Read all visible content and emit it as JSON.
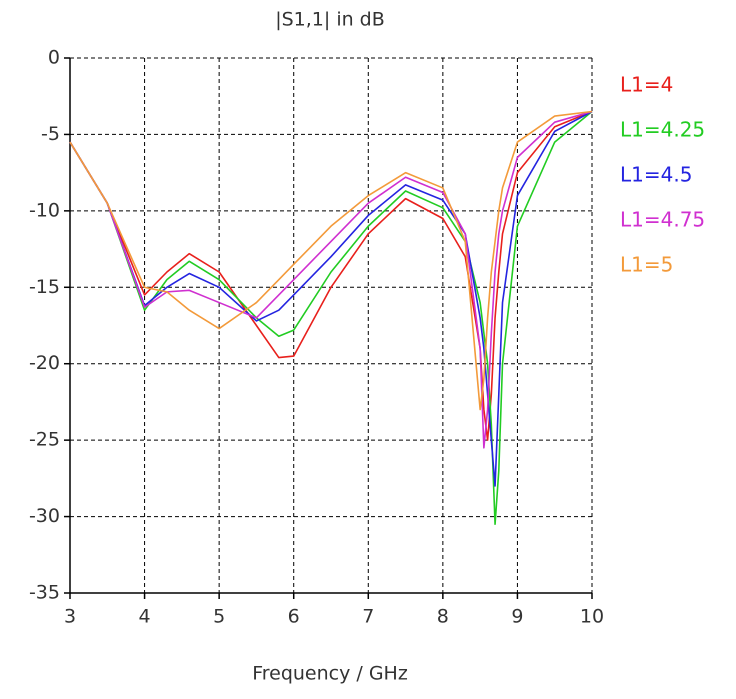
{
  "chart_data": {
    "type": "line",
    "title": "|S1,1| in dB",
    "x_label": "Frequency / GHz",
    "x": [
      3,
      3.5,
      4,
      4.3,
      4.6,
      5,
      5.5,
      5.8,
      6,
      6.5,
      7,
      7.5,
      8,
      8.3,
      8.5,
      8.55,
      8.6,
      8.65,
      8.7,
      8.75,
      8.8,
      9,
      9.5,
      10
    ],
    "series": [
      {
        "name": "L1=4",
        "color": "#e8201c",
        "values": [
          -5.5,
          -9.5,
          -15.5,
          -14,
          -12.8,
          -14,
          -17.5,
          -19.6,
          -19.5,
          -15,
          -11.5,
          -9.2,
          -10.5,
          -13,
          -19,
          -23,
          -25,
          -22,
          -17,
          -14,
          -11.5,
          -7.5,
          -4.5,
          -3.5
        ]
      },
      {
        "name": "L1=4.25",
        "color": "#22cc22",
        "values": [
          -5.5,
          -9.5,
          -16.5,
          -14.5,
          -13.3,
          -14.5,
          -17,
          -18.2,
          -17.8,
          -14,
          -11,
          -8.7,
          -9.8,
          -12,
          -16,
          -18,
          -20,
          -24,
          -30.5,
          -27,
          -20,
          -11,
          -5.5,
          -3.5
        ]
      },
      {
        "name": "L1=4.5",
        "color": "#2424e0",
        "values": [
          -5.5,
          -9.5,
          -16.2,
          -15,
          -14.1,
          -15,
          -17.2,
          -16.5,
          -15.5,
          -13,
          -10.3,
          -8.3,
          -9.3,
          -11.5,
          -17,
          -19,
          -22,
          -25,
          -28,
          -22,
          -16,
          -9,
          -4.8,
          -3.5
        ]
      },
      {
        "name": "L1=4.75",
        "color": "#d030d0",
        "values": [
          -5.5,
          -9.5,
          -16.3,
          -15.3,
          -15.2,
          -16,
          -17,
          -15.5,
          -14.5,
          -12,
          -9.5,
          -7.8,
          -8.8,
          -11.5,
          -19,
          -25.5,
          -23,
          -18,
          -14,
          -11.5,
          -10,
          -6.5,
          -4.2,
          -3.5
        ]
      },
      {
        "name": "L1=5",
        "color": "#f39a3a",
        "values": [
          -5.5,
          -9.5,
          -15,
          -15.3,
          -16.5,
          -17.7,
          -16,
          -14.5,
          -13.5,
          -11,
          -9,
          -7.5,
          -8.5,
          -12,
          -23,
          -21,
          -17,
          -14,
          -12,
          -10,
          -8.5,
          -5.5,
          -3.8,
          -3.5
        ]
      }
    ],
    "xlim": [
      3,
      10
    ],
    "xticks": [
      3,
      4,
      5,
      6,
      7,
      8,
      9,
      10
    ],
    "ylim": [
      -35,
      0
    ],
    "yticks": [
      -35,
      -30,
      -25,
      -20,
      -15,
      -10,
      -5,
      0
    ],
    "grid": true
  }
}
